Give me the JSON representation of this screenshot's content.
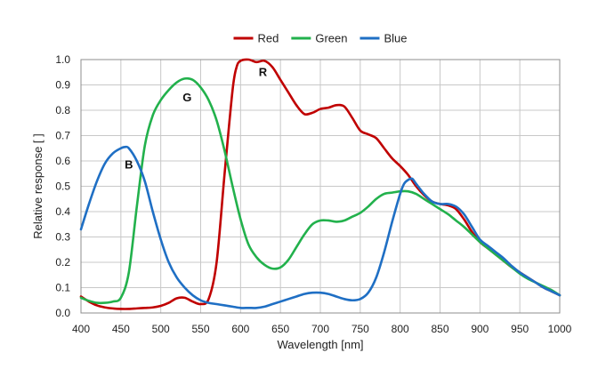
{
  "chart_data": {
    "type": "line",
    "xlabel": "Wavelength [nm]",
    "ylabel": "Relative response [ ]",
    "xlim": [
      400,
      1000
    ],
    "ylim": [
      0,
      1.0
    ],
    "xticks": [
      400,
      450,
      500,
      550,
      600,
      650,
      700,
      750,
      800,
      850,
      900,
      950,
      1000
    ],
    "yticks": [
      0.0,
      0.1,
      0.2,
      0.3,
      0.4,
      0.5,
      0.6,
      0.7,
      0.8,
      0.9,
      1.0
    ],
    "x_tick_labels": [
      "400",
      "450",
      "500",
      "550",
      "600",
      "650",
      "700",
      "750",
      "800",
      "850",
      "900",
      "950",
      "1000"
    ],
    "y_tick_labels": [
      "0.0",
      "0.1",
      "0.2",
      "0.3",
      "0.4",
      "0.5",
      "0.6",
      "0.7",
      "0.8",
      "0.9",
      "1.0"
    ],
    "grid": true,
    "legend_position": "top-center",
    "series": [
      {
        "name": "Red",
        "color": "#c00000",
        "x": [
          400,
          410,
          420,
          430,
          440,
          450,
          460,
          470,
          480,
          490,
          500,
          510,
          520,
          530,
          540,
          550,
          560,
          570,
          580,
          590,
          595,
          600,
          610,
          620,
          630,
          640,
          650,
          660,
          670,
          680,
          690,
          700,
          710,
          720,
          730,
          740,
          750,
          760,
          770,
          780,
          790,
          800,
          810,
          820,
          830,
          840,
          850,
          860,
          870,
          880,
          890,
          900,
          910,
          920,
          930,
          940,
          950,
          960,
          970,
          980,
          990,
          1000
        ],
        "y": [
          0.065,
          0.045,
          0.03,
          0.022,
          0.018,
          0.016,
          0.016,
          0.018,
          0.02,
          0.022,
          0.028,
          0.04,
          0.058,
          0.06,
          0.045,
          0.035,
          0.055,
          0.2,
          0.55,
          0.88,
          0.97,
          0.995,
          1.0,
          0.99,
          0.995,
          0.97,
          0.92,
          0.87,
          0.82,
          0.785,
          0.79,
          0.805,
          0.81,
          0.82,
          0.815,
          0.77,
          0.72,
          0.705,
          0.69,
          0.65,
          0.61,
          0.58,
          0.545,
          0.5,
          0.465,
          0.44,
          0.43,
          0.425,
          0.41,
          0.37,
          0.32,
          0.28,
          0.255,
          0.23,
          0.205,
          0.18,
          0.16,
          0.14,
          0.12,
          0.1,
          0.085,
          0.07
        ]
      },
      {
        "name": "Green",
        "color": "#22b14c",
        "x": [
          400,
          410,
          420,
          430,
          440,
          450,
          460,
          470,
          480,
          490,
          500,
          510,
          520,
          530,
          540,
          550,
          560,
          570,
          580,
          590,
          600,
          610,
          620,
          630,
          640,
          650,
          660,
          670,
          680,
          690,
          700,
          710,
          720,
          730,
          740,
          750,
          760,
          770,
          780,
          790,
          800,
          810,
          820,
          830,
          840,
          850,
          860,
          870,
          880,
          890,
          900,
          910,
          920,
          930,
          940,
          950,
          960,
          970,
          980,
          990,
          1000
        ],
        "y": [
          0.06,
          0.048,
          0.04,
          0.04,
          0.045,
          0.06,
          0.16,
          0.42,
          0.66,
          0.78,
          0.84,
          0.88,
          0.91,
          0.925,
          0.92,
          0.89,
          0.84,
          0.76,
          0.64,
          0.5,
          0.37,
          0.27,
          0.22,
          0.19,
          0.175,
          0.18,
          0.21,
          0.26,
          0.31,
          0.35,
          0.365,
          0.365,
          0.36,
          0.365,
          0.38,
          0.395,
          0.42,
          0.45,
          0.47,
          0.475,
          0.48,
          0.48,
          0.47,
          0.45,
          0.43,
          0.41,
          0.39,
          0.365,
          0.34,
          0.31,
          0.28,
          0.255,
          0.23,
          0.205,
          0.18,
          0.155,
          0.135,
          0.12,
          0.105,
          0.09,
          0.07
        ]
      },
      {
        "name": "Blue",
        "color": "#1f6fc4",
        "x": [
          400,
          410,
          420,
          430,
          440,
          450,
          455,
          460,
          470,
          480,
          490,
          500,
          510,
          520,
          530,
          540,
          550,
          560,
          570,
          580,
          590,
          600,
          610,
          620,
          630,
          640,
          650,
          660,
          670,
          680,
          690,
          700,
          710,
          720,
          730,
          740,
          750,
          760,
          770,
          780,
          790,
          800,
          805,
          810,
          815,
          820,
          830,
          840,
          850,
          860,
          870,
          880,
          890,
          900,
          910,
          920,
          930,
          940,
          950,
          960,
          970,
          980,
          990,
          1000
        ],
        "y": [
          0.33,
          0.43,
          0.52,
          0.59,
          0.63,
          0.65,
          0.655,
          0.65,
          0.6,
          0.52,
          0.4,
          0.29,
          0.2,
          0.14,
          0.1,
          0.07,
          0.05,
          0.04,
          0.035,
          0.03,
          0.025,
          0.02,
          0.02,
          0.02,
          0.025,
          0.035,
          0.045,
          0.055,
          0.065,
          0.075,
          0.08,
          0.08,
          0.075,
          0.065,
          0.055,
          0.05,
          0.055,
          0.08,
          0.14,
          0.24,
          0.36,
          0.47,
          0.51,
          0.525,
          0.53,
          0.51,
          0.47,
          0.44,
          0.43,
          0.43,
          0.42,
          0.39,
          0.34,
          0.29,
          0.265,
          0.24,
          0.215,
          0.185,
          0.16,
          0.14,
          0.12,
          0.1,
          0.085,
          0.07
        ]
      }
    ],
    "annotations": [
      {
        "text": "R",
        "x": 628,
        "y": 0.935
      },
      {
        "text": "G",
        "x": 533,
        "y": 0.835
      },
      {
        "text": "B",
        "x": 460,
        "y": 0.57
      }
    ]
  }
}
